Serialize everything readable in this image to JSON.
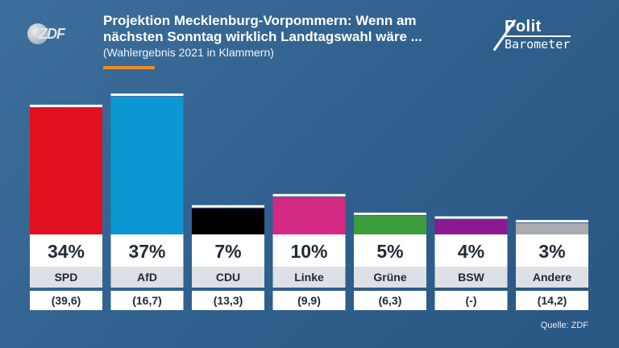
{
  "header": {
    "logo_text": "ZDF",
    "title_line1": "Projektion Mecklenburg-Vorpommern: Wenn am",
    "title_line2": "nächsten Sonntag wirklich Landtagswahl wäre ...",
    "subtitle": "(Wahlergebnis 2021 in Klammern)",
    "brand_line1": "Polit",
    "brand_line2": "Barometer"
  },
  "source": "Quelle: ZDF",
  "chart_data": {
    "type": "bar",
    "categories": [
      "SPD",
      "AfD",
      "CDU",
      "Linke",
      "Grüne",
      "BSW",
      "Andere"
    ],
    "values": [
      34,
      37,
      7,
      10,
      5,
      4,
      3
    ],
    "value_labels": [
      "34%",
      "37%",
      "7%",
      "10%",
      "5%",
      "4%",
      "3%"
    ],
    "previous_labels": [
      "(39,6)",
      "(16,7)",
      "(13,3)",
      "(9,9)",
      "(6,3)",
      "(-)",
      "(14,2)"
    ],
    "colors": [
      "#e3101f",
      "#0d97d2",
      "#000000",
      "#d32a84",
      "#3d9e3d",
      "#8a1a91",
      "#a9abae"
    ],
    "unit": "%"
  }
}
